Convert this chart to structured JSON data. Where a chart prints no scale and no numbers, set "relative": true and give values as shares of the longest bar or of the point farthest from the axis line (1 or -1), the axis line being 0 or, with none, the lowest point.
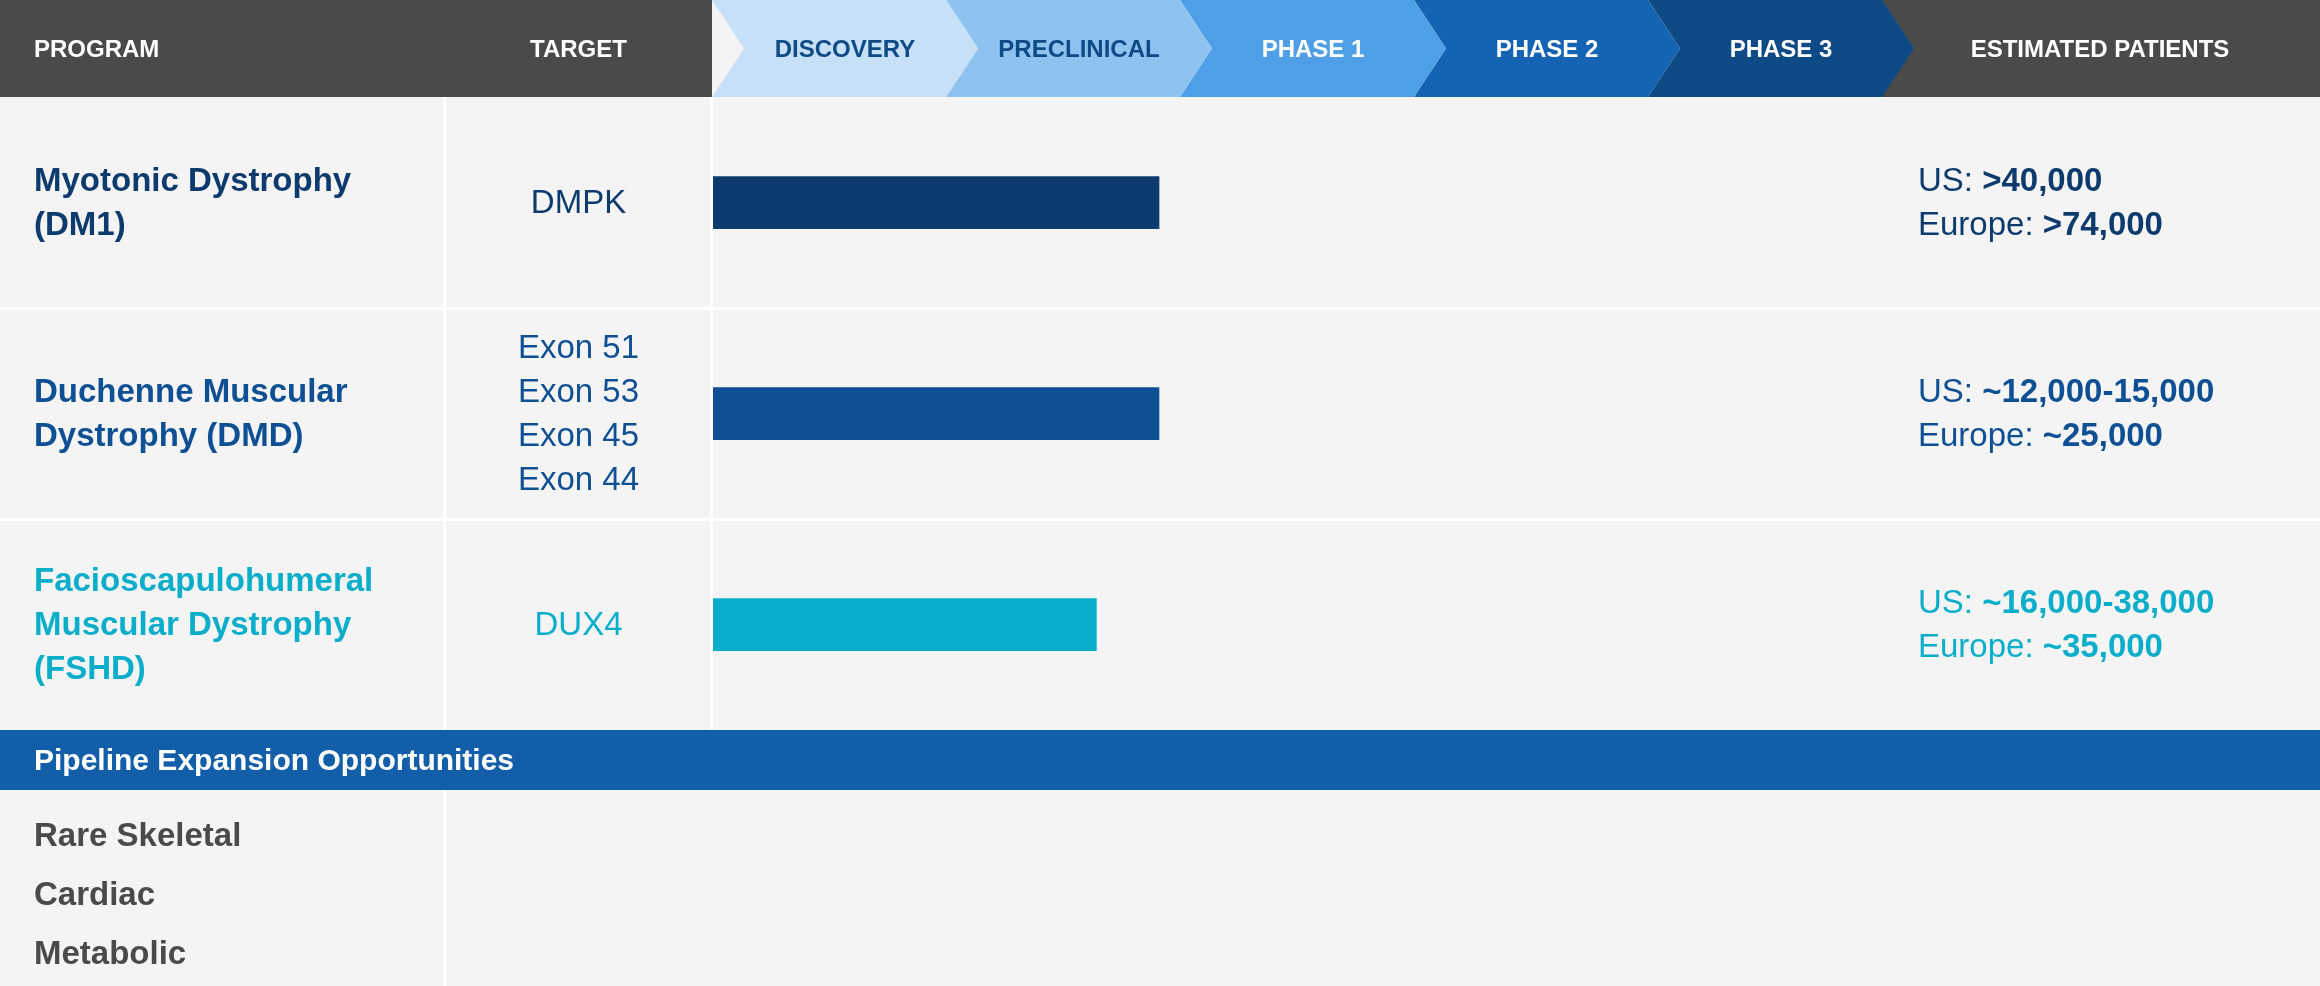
{
  "chart_data": {
    "type": "bar",
    "orientation": "horizontal",
    "relative": true,
    "categories": [
      "Myotonic Dystrophy (DM1)",
      "Duchenne Muscular Dystrophy (DMD)",
      "Facioscapulohumeral Muscular Dystrophy (FSHD)"
    ],
    "values": [
      1,
      1,
      0.86
    ],
    "colors": [
      "#0d3b6e",
      "#0f4f94",
      "#0aaecb"
    ],
    "annotations": [
      "PROGRAM",
      "TARGET",
      "DISCOVERY",
      "PRECLINICAL",
      "PHASE 1",
      "PHASE 2",
      "PHASE 3",
      "ESTIMATED PATIENTS",
      "DMPK",
      "Exon 51\nExon 53\nExon 45\nExon 44",
      "DUX4",
      "US: >40,000\nEurope: >74,000",
      "US: ~12,000-15,000\nEurope: ~25,000",
      "US: ~16,000-38,000\nEurope: ~35,000",
      "Pipeline Expansion Opportunities",
      "Rare Skeletal\nCardiac\nMetabolic"
    ]
  }
}
